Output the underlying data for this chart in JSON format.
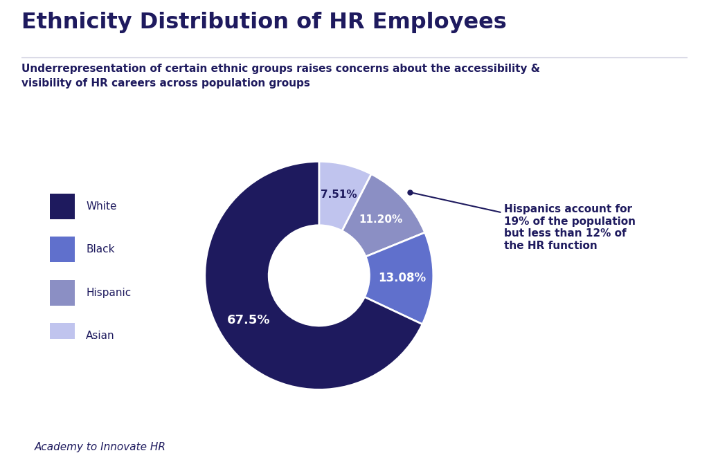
{
  "title": "Ethnicity Distribution of HR Employees",
  "subtitle": "Underrepresentation of certain ethnic groups raises concerns about the accessibility &\nvisibility of HR careers across population groups",
  "footer": "Academy to Innovate HR",
  "categories": [
    "White",
    "Black",
    "Hispanic",
    "Asian"
  ],
  "values": [
    67.5,
    13.08,
    11.2,
    7.51
  ],
  "labels": [
    "67.5%",
    "13.08%",
    "11.20%",
    "7.51%"
  ],
  "colors": [
    "#1e1a5e",
    "#6070cc",
    "#8b8fc4",
    "#c0c4ee"
  ],
  "background_color": "#e6e6f5",
  "page_background": "#ffffff",
  "title_color": "#1e1a5e",
  "subtitle_color": "#1e1a5e",
  "annotation_text": "Hispanics account for\n19% of the population\nbut less than 12% of\nthe HR function",
  "annotation_color": "#1e1a5e",
  "label_colors": [
    "#ffffff",
    "#ffffff",
    "#ffffff",
    "#1e1a5e"
  ],
  "wedge_edge_color": "#ffffff",
  "startangle": 90,
  "pie_order": [
    3,
    2,
    1,
    0
  ],
  "separator_color": "#ccccdd"
}
